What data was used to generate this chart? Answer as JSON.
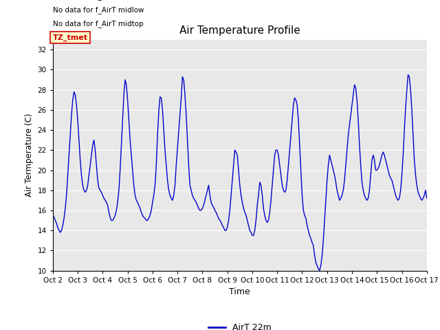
{
  "title": "Air Temperature Profile",
  "xlabel": "Time",
  "ylabel": "Air Termperature (C)",
  "legend_label": "AirT 22m",
  "legend_texts": [
    "No data for f_AirT low",
    "No data for f_AirT midlow",
    "No data for f_AirT midtop"
  ],
  "legend_box_label": "TZ_tmet",
  "ylim": [
    10,
    33
  ],
  "yticks": [
    10,
    12,
    14,
    16,
    18,
    20,
    22,
    24,
    26,
    28,
    30,
    32
  ],
  "line_color": "#0000cc",
  "background_color": "#e8e8e8",
  "x_labels": [
    "Oct 2",
    "Oct 3",
    "Oct 4",
    "Oct 5",
    "Oct 6",
    "Oct 7",
    "Oct 8",
    "Oct 9",
    "Oct 10",
    "Oct 11",
    "Oct 12",
    "Oct 13",
    "Oct 14",
    "Oct 15",
    "Oct 16",
    "Oct 17"
  ],
  "time_values": [
    2.0,
    2.05,
    2.1,
    2.15,
    2.2,
    2.25,
    2.3,
    2.35,
    2.4,
    2.45,
    2.5,
    2.55,
    2.6,
    2.65,
    2.7,
    2.75,
    2.8,
    2.85,
    2.9,
    2.95,
    3.0,
    3.05,
    3.1,
    3.15,
    3.2,
    3.25,
    3.3,
    3.35,
    3.4,
    3.45,
    3.5,
    3.55,
    3.6,
    3.65,
    3.7,
    3.75,
    3.8,
    3.85,
    3.9,
    3.95,
    4.0,
    4.05,
    4.1,
    4.15,
    4.2,
    4.25,
    4.3,
    4.35,
    4.4,
    4.45,
    4.5,
    4.55,
    4.6,
    4.65,
    4.7,
    4.75,
    4.8,
    4.85,
    4.9,
    4.95,
    5.0,
    5.05,
    5.1,
    5.15,
    5.2,
    5.25,
    5.3,
    5.35,
    5.4,
    5.45,
    5.5,
    5.55,
    5.6,
    5.65,
    5.7,
    5.75,
    5.8,
    5.85,
    5.9,
    5.95,
    6.0,
    6.05,
    6.1,
    6.15,
    6.2,
    6.25,
    6.3,
    6.35,
    6.4,
    6.45,
    6.5,
    6.55,
    6.6,
    6.65,
    6.7,
    6.75,
    6.8,
    6.85,
    6.9,
    6.95,
    7.0,
    7.05,
    7.1,
    7.15,
    7.2,
    7.25,
    7.3,
    7.35,
    7.4,
    7.45,
    7.5,
    7.55,
    7.6,
    7.65,
    7.7,
    7.75,
    7.8,
    7.85,
    7.9,
    7.95,
    8.0,
    8.05,
    8.1,
    8.15,
    8.2,
    8.25,
    8.3,
    8.35,
    8.4,
    8.45,
    8.5,
    8.55,
    8.6,
    8.65,
    8.7,
    8.75,
    8.8,
    8.85,
    8.9,
    8.95,
    9.0,
    9.05,
    9.1,
    9.15,
    9.2,
    9.25,
    9.3,
    9.35,
    9.4,
    9.45,
    9.5,
    9.55,
    9.6,
    9.65,
    9.7,
    9.75,
    9.8,
    9.85,
    9.9,
    9.95,
    10.0,
    10.05,
    10.1,
    10.15,
    10.2,
    10.25,
    10.3,
    10.35,
    10.4,
    10.45,
    10.5,
    10.55,
    10.6,
    10.65,
    10.7,
    10.75,
    10.8,
    10.85,
    10.9,
    10.95,
    11.0,
    11.05,
    11.1,
    11.15,
    11.2,
    11.25,
    11.3,
    11.35,
    11.4,
    11.45,
    11.5,
    11.55,
    11.6,
    11.65,
    11.7,
    11.75,
    11.8,
    11.85,
    11.9,
    11.95,
    12.0,
    12.05,
    12.1,
    12.15,
    12.2,
    12.25,
    12.3,
    12.35,
    12.4,
    12.45,
    12.5,
    12.55,
    12.6,
    12.65,
    12.7,
    12.75,
    12.8,
    12.85,
    12.9,
    12.95,
    13.0,
    13.05,
    13.1,
    13.15,
    13.2,
    13.25,
    13.3,
    13.35,
    13.4,
    13.45,
    13.5,
    13.55,
    13.6,
    13.65,
    13.7,
    13.75,
    13.8,
    13.85,
    13.9,
    13.95,
    14.0,
    14.05,
    14.1,
    14.15,
    14.2,
    14.25,
    14.3,
    14.35,
    14.4,
    14.45,
    14.5,
    14.55,
    14.6,
    14.65,
    14.7,
    14.75,
    14.8,
    14.85,
    14.9,
    14.95,
    15.0,
    15.05,
    15.1,
    15.15,
    15.2,
    15.25,
    15.3,
    15.35,
    15.4,
    15.45,
    15.5,
    15.55,
    15.6,
    15.65,
    15.7,
    15.75,
    15.8,
    15.85,
    15.9,
    15.95,
    16.0,
    16.05,
    16.1,
    16.15,
    16.2,
    16.25,
    16.3,
    16.35,
    16.4,
    16.45,
    16.5,
    16.55,
    16.6,
    16.65,
    16.7,
    16.75,
    16.8,
    16.85,
    16.9,
    16.95,
    17.0
  ],
  "temp_values": [
    15.5,
    15.3,
    15.0,
    14.7,
    14.3,
    14.0,
    13.8,
    14.0,
    14.5,
    15.2,
    16.2,
    17.5,
    19.5,
    21.5,
    23.5,
    25.5,
    27.0,
    27.8,
    27.5,
    26.5,
    25.0,
    23.0,
    21.0,
    19.5,
    18.5,
    18.0,
    17.8,
    18.0,
    18.5,
    19.5,
    20.5,
    21.5,
    22.5,
    23.0,
    22.0,
    20.5,
    19.0,
    18.2,
    18.0,
    17.8,
    17.5,
    17.2,
    17.0,
    16.8,
    16.5,
    15.8,
    15.3,
    15.0,
    15.0,
    15.2,
    15.5,
    16.0,
    16.8,
    18.0,
    20.0,
    22.5,
    25.0,
    27.5,
    29.0,
    28.5,
    27.0,
    25.0,
    23.0,
    21.5,
    20.0,
    18.5,
    17.5,
    17.0,
    16.8,
    16.5,
    16.2,
    15.8,
    15.5,
    15.3,
    15.2,
    15.0,
    15.0,
    15.2,
    15.5,
    16.0,
    16.8,
    17.5,
    18.5,
    20.5,
    23.5,
    25.8,
    27.3,
    27.2,
    26.0,
    24.0,
    22.0,
    20.5,
    19.0,
    18.0,
    17.5,
    17.2,
    17.0,
    17.5,
    18.5,
    20.5,
    22.2,
    24.0,
    25.5,
    27.2,
    29.3,
    29.0,
    27.5,
    25.5,
    23.0,
    20.5,
    18.5,
    18.0,
    17.5,
    17.2,
    17.0,
    16.8,
    16.5,
    16.2,
    16.0,
    16.0,
    16.2,
    16.5,
    17.0,
    17.5,
    18.0,
    18.5,
    17.5,
    16.8,
    16.5,
    16.3,
    16.0,
    15.8,
    15.5,
    15.2,
    15.0,
    14.8,
    14.5,
    14.3,
    14.0,
    14.0,
    14.3,
    15.0,
    16.0,
    17.5,
    19.0,
    20.5,
    22.0,
    21.8,
    21.5,
    20.0,
    18.5,
    17.5,
    16.8,
    16.2,
    15.8,
    15.5,
    15.0,
    14.5,
    14.0,
    13.8,
    13.5,
    13.5,
    14.0,
    15.0,
    16.5,
    17.5,
    18.8,
    18.5,
    17.5,
    16.2,
    15.5,
    15.0,
    14.8,
    15.0,
    15.8,
    17.0,
    18.5,
    20.0,
    21.5,
    22.0,
    22.0,
    21.5,
    20.5,
    19.5,
    18.5,
    18.0,
    17.8,
    18.0,
    19.0,
    20.5,
    22.0,
    23.5,
    25.0,
    26.5,
    27.2,
    27.0,
    26.5,
    25.0,
    22.5,
    20.0,
    17.5,
    16.0,
    15.5,
    15.2,
    14.5,
    14.0,
    13.5,
    13.2,
    12.8,
    12.5,
    11.5,
    10.8,
    10.5,
    10.2,
    10.0,
    10.5,
    11.5,
    13.0,
    15.0,
    17.0,
    19.0,
    20.5,
    21.5,
    21.0,
    20.5,
    20.0,
    19.5,
    18.8,
    18.0,
    17.5,
    17.0,
    17.2,
    17.5,
    18.0,
    19.0,
    20.5,
    22.0,
    23.5,
    24.5,
    25.5,
    26.5,
    27.5,
    28.5,
    28.2,
    27.0,
    25.0,
    22.5,
    20.5,
    18.8,
    18.0,
    17.5,
    17.2,
    17.0,
    17.2,
    18.0,
    19.5,
    21.0,
    21.5,
    21.0,
    20.0,
    20.0,
    20.2,
    20.5,
    21.0,
    21.5,
    21.8,
    21.5,
    21.0,
    20.5,
    20.0,
    19.5,
    19.2,
    19.0,
    18.5,
    18.0,
    17.5,
    17.2,
    17.0,
    17.2,
    18.0,
    19.5,
    21.5,
    24.0,
    26.2,
    28.0,
    29.5,
    29.3,
    28.0,
    26.0,
    23.5,
    21.0,
    19.5,
    18.5,
    17.8,
    17.5,
    17.2,
    17.0,
    17.2,
    17.5,
    18.0,
    17.2
  ],
  "notes_color": "#000000",
  "box_bg": "#ffffcc",
  "box_edge": "#cc0000",
  "box_text_color": "#cc0000"
}
